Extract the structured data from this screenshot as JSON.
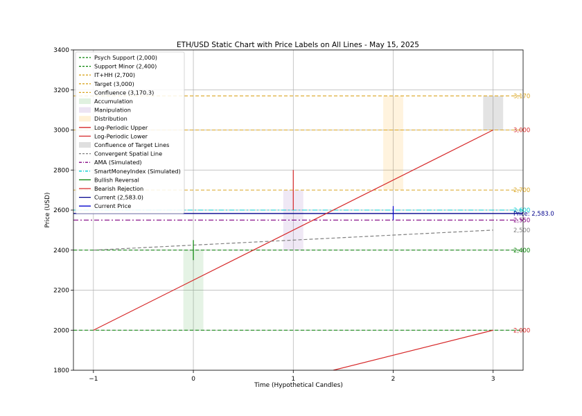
{
  "chart_data": {
    "type": "line",
    "title": "ETH/USD Static Chart with Price Labels on All Lines - May 15, 2025",
    "xlabel": "Time (Hypothetical Candles)",
    "ylabel": "Price (USD)",
    "xlim": [
      -1.2,
      3.3
    ],
    "ylim": [
      1800,
      3400
    ],
    "xticks": [
      -1,
      0,
      1,
      2,
      3
    ],
    "xtick_labels": [
      "−1",
      "0",
      "1",
      "2",
      "3"
    ],
    "yticks": [
      1800,
      2000,
      2200,
      2400,
      2600,
      2800,
      3000,
      3200,
      3400
    ],
    "ytick_labels": [
      "1800",
      "2000",
      "2200",
      "2400",
      "2600",
      "2800",
      "3000",
      "3200",
      "3400"
    ],
    "grid": true,
    "legend_position": "top-left",
    "hlines": [
      {
        "name": "Psych Support (2,000)",
        "y": 2000,
        "color": "#008000",
        "dash": "dashed",
        "label": "2,000",
        "label_color": "#d62728"
      },
      {
        "name": "Support Minor (2,400)",
        "y": 2400,
        "color": "#008000",
        "dash": "dashed",
        "label": "2,400",
        "label_color": "#008000"
      },
      {
        "name": "IT+HH (2,700)",
        "y": 2700,
        "color": "#daa520",
        "dash": "dashed",
        "label": "2,700",
        "label_color": "#daa520"
      },
      {
        "name": "Target (3,000)",
        "y": 3000,
        "color": "#daa520",
        "dash": "dashed",
        "label": "3,000",
        "label_color": "#d62728"
      },
      {
        "name": "Confluence (3,170.3)",
        "y": 3170.3,
        "color": "#daa520",
        "dash": "dashed",
        "label": "3,170",
        "label_color": "#daa520"
      },
      {
        "name": "AMA (Simulated)",
        "y": 2550,
        "color": "#800080",
        "dash": "dashdot",
        "label": "2,550",
        "label_color": "#800080"
      },
      {
        "name": "SmartMoneyIndex (Simulated)",
        "y": 2600,
        "color": "#00ced1",
        "dash": "dashdot",
        "label": "2,600",
        "label_color": "#00ced1"
      },
      {
        "name": "Current (2,583.0)",
        "y": 2583,
        "color": "#00008b",
        "dash": "solid",
        "label": "Price: 2,583.0",
        "label_color": "#00008b"
      }
    ],
    "zones": [
      {
        "name": "Accumulation",
        "x": [
          -0.1,
          0.1
        ],
        "y": [
          2000,
          2400
        ],
        "color": "#2ca02c",
        "opacity": 0.12
      },
      {
        "name": "Manipulation",
        "x": [
          0.9,
          1.1
        ],
        "y": [
          2400,
          2700
        ],
        "color": "#9467bd",
        "opacity": 0.15
      },
      {
        "name": "Distribution",
        "x": [
          1.9,
          2.1
        ],
        "y": [
          2700,
          3170.3
        ],
        "color": "#ffa500",
        "opacity": 0.13
      },
      {
        "name": "Confluence of Target Lines",
        "x": [
          2.9,
          3.1
        ],
        "y": [
          3000,
          3170.3
        ],
        "color": "#808080",
        "opacity": 0.22
      }
    ],
    "lines": [
      {
        "name": "Log-Periodic Upper",
        "x": [
          -1,
          3
        ],
        "y": [
          2000,
          3000
        ],
        "color": "#d62728",
        "dash": "solid"
      },
      {
        "name": "Log-Periodic Lower",
        "x": [
          1.4,
          3
        ],
        "y": [
          1800,
          2000
        ],
        "color": "#d62728",
        "dash": "solid"
      },
      {
        "name": "Convergent Spatial Line",
        "x": [
          -1,
          3
        ],
        "y": [
          2400,
          2500
        ],
        "color": "#808080",
        "dash": "dashed",
        "end_label": "2,500"
      }
    ],
    "markers": [
      {
        "name": "Bullish Reversal",
        "x": 0,
        "y": [
          2350,
          2450
        ],
        "color": "#008000"
      },
      {
        "name": "Bearish Rejection",
        "x": 1,
        "y": [
          2600,
          2800
        ],
        "color": "#d62728"
      },
      {
        "name": "Current Price",
        "x": 2,
        "y": [
          2550,
          2620
        ],
        "color": "#0000cd"
      }
    ],
    "legend": [
      {
        "label": "Psych Support (2,000)",
        "color": "#008000",
        "kind": "line",
        "dash": "dashed"
      },
      {
        "label": "Support Minor (2,400)",
        "color": "#008000",
        "kind": "line",
        "dash": "dashed"
      },
      {
        "label": "IT+HH (2,700)",
        "color": "#daa520",
        "kind": "line",
        "dash": "dashed"
      },
      {
        "label": "Target (3,000)",
        "color": "#daa520",
        "kind": "line",
        "dash": "dashed"
      },
      {
        "label": "Confluence (3,170.3)",
        "color": "#daa520",
        "kind": "line",
        "dash": "dashed"
      },
      {
        "label": "Accumulation",
        "color": "#2ca02c",
        "kind": "patch",
        "opacity": 0.15
      },
      {
        "label": "Manipulation",
        "color": "#9467bd",
        "kind": "patch",
        "opacity": 0.18
      },
      {
        "label": "Distribution",
        "color": "#ffa500",
        "kind": "patch",
        "opacity": 0.16
      },
      {
        "label": "Log-Periodic Upper",
        "color": "#d62728",
        "kind": "line",
        "dash": "solid"
      },
      {
        "label": "Log-Periodic Lower",
        "color": "#d62728",
        "kind": "line",
        "dash": "solid"
      },
      {
        "label": "Confluence of Target Lines",
        "color": "#808080",
        "kind": "patch",
        "opacity": 0.25
      },
      {
        "label": "Convergent Spatial Line",
        "color": "#808080",
        "kind": "line",
        "dash": "dashed"
      },
      {
        "label": "AMA (Simulated)",
        "color": "#800080",
        "kind": "line",
        "dash": "dashdot"
      },
      {
        "label": "SmartMoneyIndex (Simulated)",
        "color": "#00ced1",
        "kind": "line",
        "dash": "dashdot"
      },
      {
        "label": "Bullish Reversal",
        "color": "#008000",
        "kind": "line",
        "dash": "solid"
      },
      {
        "label": "Bearish Rejection",
        "color": "#d62728",
        "kind": "line",
        "dash": "solid"
      },
      {
        "label": "Current (2,583.0)",
        "color": "#00008b",
        "kind": "line",
        "dash": "solid"
      },
      {
        "label": "Current Price",
        "color": "#0000cd",
        "kind": "line",
        "dash": "solid"
      }
    ]
  }
}
